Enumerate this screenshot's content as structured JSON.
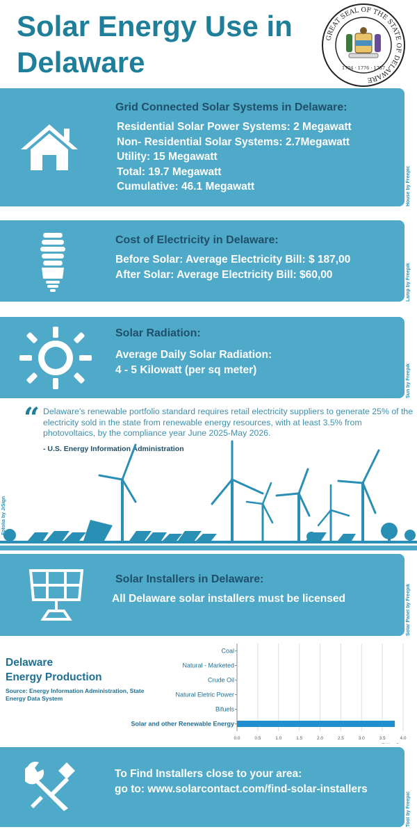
{
  "header": {
    "title": "Solar Energy Use in Delaware",
    "seal_text": "GREAT SEAL OF THE STATE OF DELAWARE",
    "seal_years": "1704 · 1776 · 1787"
  },
  "grid": {
    "heading": "Grid Connected Solar Systems in Delaware:",
    "lines": [
      "Residential Solar Power Systems: 2 Megawatt",
      "Non- Residential Solar Systems: 2.7Megawatt",
      "Utility: 15 Megawatt",
      "Total: 19.7 Megawatt",
      "Cumulative: 46.1 Megawatt"
    ],
    "icon": "house-icon",
    "credit": "House by Freepic"
  },
  "cost": {
    "heading": "Cost of Electricity in Delaware:",
    "lines": [
      "Before Solar: Average Electricity Bill: $ 187,00",
      "After Solar: Average Electricity Bill: $60,00"
    ],
    "icon": "lamp-icon",
    "credit": "Lamp by Freepik"
  },
  "radiation": {
    "heading": "Solar Radiation:",
    "lines": [
      "Average Daily Solar Radiation:",
      "4 - 5  Kilowatt (per sq meter)"
    ],
    "icon": "sun-icon",
    "credit": "Sun by Freepik"
  },
  "quote": {
    "text": "Delaware's renewable portfolio standard requires retail electricity suppliers to generate 25% of the electricity sold in the state from renewable energy resources, with at least 3.5% from photovoltaics, by the compliance year June 2025-May 2026.",
    "source": "- U.S. Energy Information Administration",
    "credit": "Fotolia by JiSign"
  },
  "installers": {
    "heading": "Solar Installers in Delaware:",
    "lines": [
      "All Delaware solar installers must be licensed"
    ],
    "icon": "solar-panel-icon",
    "credit": "Solar Panel by Freepik"
  },
  "production": {
    "title_lines": [
      "Delaware",
      "Energy Production"
    ],
    "source": "Source: Energy Information Administration, State Energy Data System"
  },
  "chart_data": {
    "type": "bar",
    "orientation": "horizontal",
    "categories": [
      "Coal",
      "Natural - Marketed",
      "Crude Oil",
      "Natural Eletric Power",
      "Bifuels",
      "Solar and other Renewable Energy"
    ],
    "values": [
      0,
      0,
      0,
      0,
      0,
      3.8
    ],
    "xlim": [
      0,
      4
    ],
    "xticks": [
      "0.0",
      "0.5",
      "1.0",
      "1.5",
      "2.0",
      "2.5",
      "3.0",
      "3.5",
      "4.0"
    ],
    "xlabel": "Trillion Btu",
    "grid": true,
    "bar_color": "#1f8fd0"
  },
  "find": {
    "lines": [
      "To Find Installers close to your area:",
      "go to: www.solarcontact.com/find-solar-installers"
    ],
    "icon": "tools-icon",
    "credit": "Tool by Freepic"
  },
  "colors": {
    "title": "#1f7f9b",
    "panel": "#4fa9c8",
    "heading": "#1f4f6a",
    "scene": "#2a8fb5"
  }
}
